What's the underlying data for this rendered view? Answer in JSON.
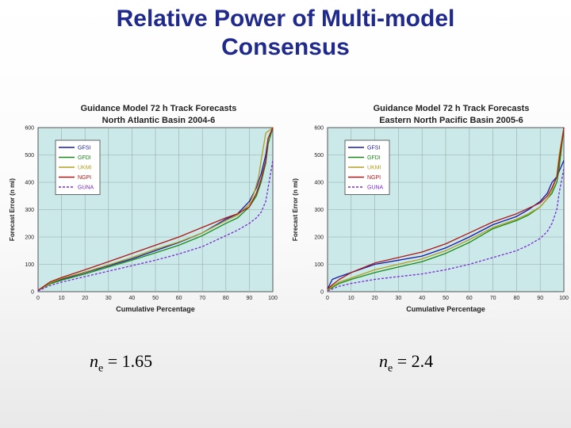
{
  "slide": {
    "title_line1": "Relative Power of Multi-model",
    "title_line2": "Consensus"
  },
  "annotations": [
    {
      "symbol": "n",
      "subscript": "e",
      "text": " = 1.65"
    },
    {
      "symbol": "n",
      "subscript": "e",
      "text": " = 2.4"
    }
  ],
  "chart_data": [
    {
      "type": "line",
      "title": "Guidance Model 72 h Track Forecasts",
      "subtitle": "North Atlantic Basin 2004-6",
      "xlabel": "Cumulative Percentage",
      "ylabel": "Forecast Error (n mi)",
      "xlim": [
        0,
        100
      ],
      "ylim": [
        0,
        600
      ],
      "xticks": [
        "0",
        "10",
        "20",
        "30",
        "40",
        "50",
        "60",
        "70",
        "80",
        "90",
        "100"
      ],
      "yticks": [
        "0",
        "100",
        "200",
        "300",
        "400",
        "500",
        "600"
      ],
      "grid": true,
      "legend_position": "top-left",
      "background_color": "#cbe9e9",
      "series": [
        {
          "name": "GFSI",
          "color": "#1a1aa6",
          "dashed": false,
          "x": [
            0,
            5,
            10,
            20,
            30,
            40,
            50,
            60,
            70,
            80,
            85,
            90,
            93,
            95,
            97,
            98,
            100
          ],
          "y": [
            5,
            30,
            45,
            70,
            95,
            120,
            150,
            180,
            215,
            265,
            285,
            330,
            380,
            430,
            500,
            560,
            600
          ]
        },
        {
          "name": "GFDI",
          "color": "#1a8a1a",
          "dashed": false,
          "x": [
            0,
            5,
            10,
            20,
            30,
            40,
            50,
            60,
            70,
            80,
            85,
            90,
            93,
            95,
            97,
            98,
            100
          ],
          "y": [
            5,
            28,
            42,
            65,
            90,
            115,
            142,
            170,
            205,
            250,
            270,
            310,
            350,
            400,
            470,
            540,
            600
          ]
        },
        {
          "name": "UKMI",
          "color": "#b0a020",
          "dashed": false,
          "x": [
            0,
            5,
            10,
            20,
            30,
            40,
            50,
            60,
            70,
            80,
            85,
            90,
            92,
            94,
            95,
            96,
            97,
            100
          ],
          "y": [
            5,
            32,
            48,
            72,
            98,
            125,
            155,
            182,
            215,
            260,
            280,
            320,
            360,
            420,
            480,
            530,
            580,
            600
          ]
        },
        {
          "name": "NGPI",
          "color": "#b01818",
          "dashed": false,
          "x": [
            0,
            5,
            10,
            20,
            30,
            40,
            50,
            60,
            70,
            80,
            85,
            90,
            93,
            95,
            97,
            98,
            100
          ],
          "y": [
            5,
            35,
            52,
            80,
            110,
            140,
            170,
            200,
            235,
            270,
            285,
            310,
            360,
            410,
            480,
            560,
            600
          ]
        },
        {
          "name": "GUNA",
          "color": "#7a2ad0",
          "dashed": true,
          "x": [
            0,
            5,
            10,
            20,
            30,
            40,
            50,
            60,
            70,
            80,
            85,
            90,
            93,
            95,
            97,
            98,
            100
          ],
          "y": [
            3,
            22,
            35,
            55,
            75,
            95,
            115,
            138,
            165,
            205,
            225,
            250,
            270,
            290,
            330,
            380,
            480
          ]
        }
      ]
    },
    {
      "type": "line",
      "title": "Guidance Model 72 h Track Forecasts",
      "subtitle": "Eastern North Pacific Basin 2005-6",
      "xlabel": "Cumulative Percentage",
      "ylabel": "Forecast Error (n mi)",
      "xlim": [
        0,
        100
      ],
      "ylim": [
        0,
        600
      ],
      "xticks": [
        "0",
        "10",
        "20",
        "30",
        "40",
        "50",
        "60",
        "70",
        "80",
        "90",
        "100"
      ],
      "yticks": [
        "0",
        "100",
        "200",
        "300",
        "400",
        "500",
        "600"
      ],
      "grid": true,
      "legend_position": "top-left",
      "background_color": "#cbe9e9",
      "series": [
        {
          "name": "GFSI",
          "color": "#1a1aa6",
          "dashed": false,
          "x": [
            0,
            2,
            5,
            10,
            20,
            30,
            40,
            50,
            60,
            70,
            80,
            85,
            90,
            93,
            95,
            97,
            98,
            100
          ],
          "y": [
            10,
            45,
            55,
            70,
            100,
            115,
            130,
            160,
            200,
            245,
            275,
            300,
            330,
            360,
            400,
            420,
            440,
            480
          ]
        },
        {
          "name": "GFDI",
          "color": "#1a8a1a",
          "dashed": false,
          "x": [
            0,
            2,
            5,
            10,
            20,
            30,
            40,
            50,
            60,
            70,
            80,
            85,
            90,
            93,
            95,
            97,
            98,
            100
          ],
          "y": [
            5,
            15,
            30,
            45,
            70,
            90,
            110,
            140,
            180,
            230,
            260,
            280,
            310,
            340,
            360,
            400,
            450,
            600
          ]
        },
        {
          "name": "UKMI",
          "color": "#b0a020",
          "dashed": false,
          "x": [
            0,
            2,
            5,
            10,
            20,
            30,
            40,
            50,
            60,
            70,
            80,
            85,
            90,
            93,
            95,
            97,
            98,
            100
          ],
          "y": [
            5,
            20,
            35,
            50,
            80,
            100,
            120,
            150,
            190,
            235,
            265,
            285,
            310,
            340,
            370,
            420,
            500,
            600
          ]
        },
        {
          "name": "NGPI",
          "color": "#b01818",
          "dashed": false,
          "x": [
            0,
            2,
            5,
            10,
            20,
            30,
            40,
            50,
            60,
            70,
            80,
            85,
            90,
            93,
            95,
            97,
            98,
            100
          ],
          "y": [
            10,
            25,
            45,
            70,
            105,
            125,
            145,
            175,
            215,
            255,
            285,
            305,
            325,
            350,
            380,
            420,
            480,
            600
          ]
        },
        {
          "name": "GUNA",
          "color": "#7a2ad0",
          "dashed": true,
          "x": [
            0,
            2,
            5,
            10,
            20,
            30,
            40,
            50,
            60,
            70,
            80,
            85,
            90,
            93,
            95,
            97,
            98,
            100
          ],
          "y": [
            3,
            10,
            20,
            30,
            45,
            55,
            65,
            80,
            100,
            125,
            150,
            170,
            195,
            220,
            250,
            300,
            360,
            450
          ]
        }
      ]
    }
  ]
}
